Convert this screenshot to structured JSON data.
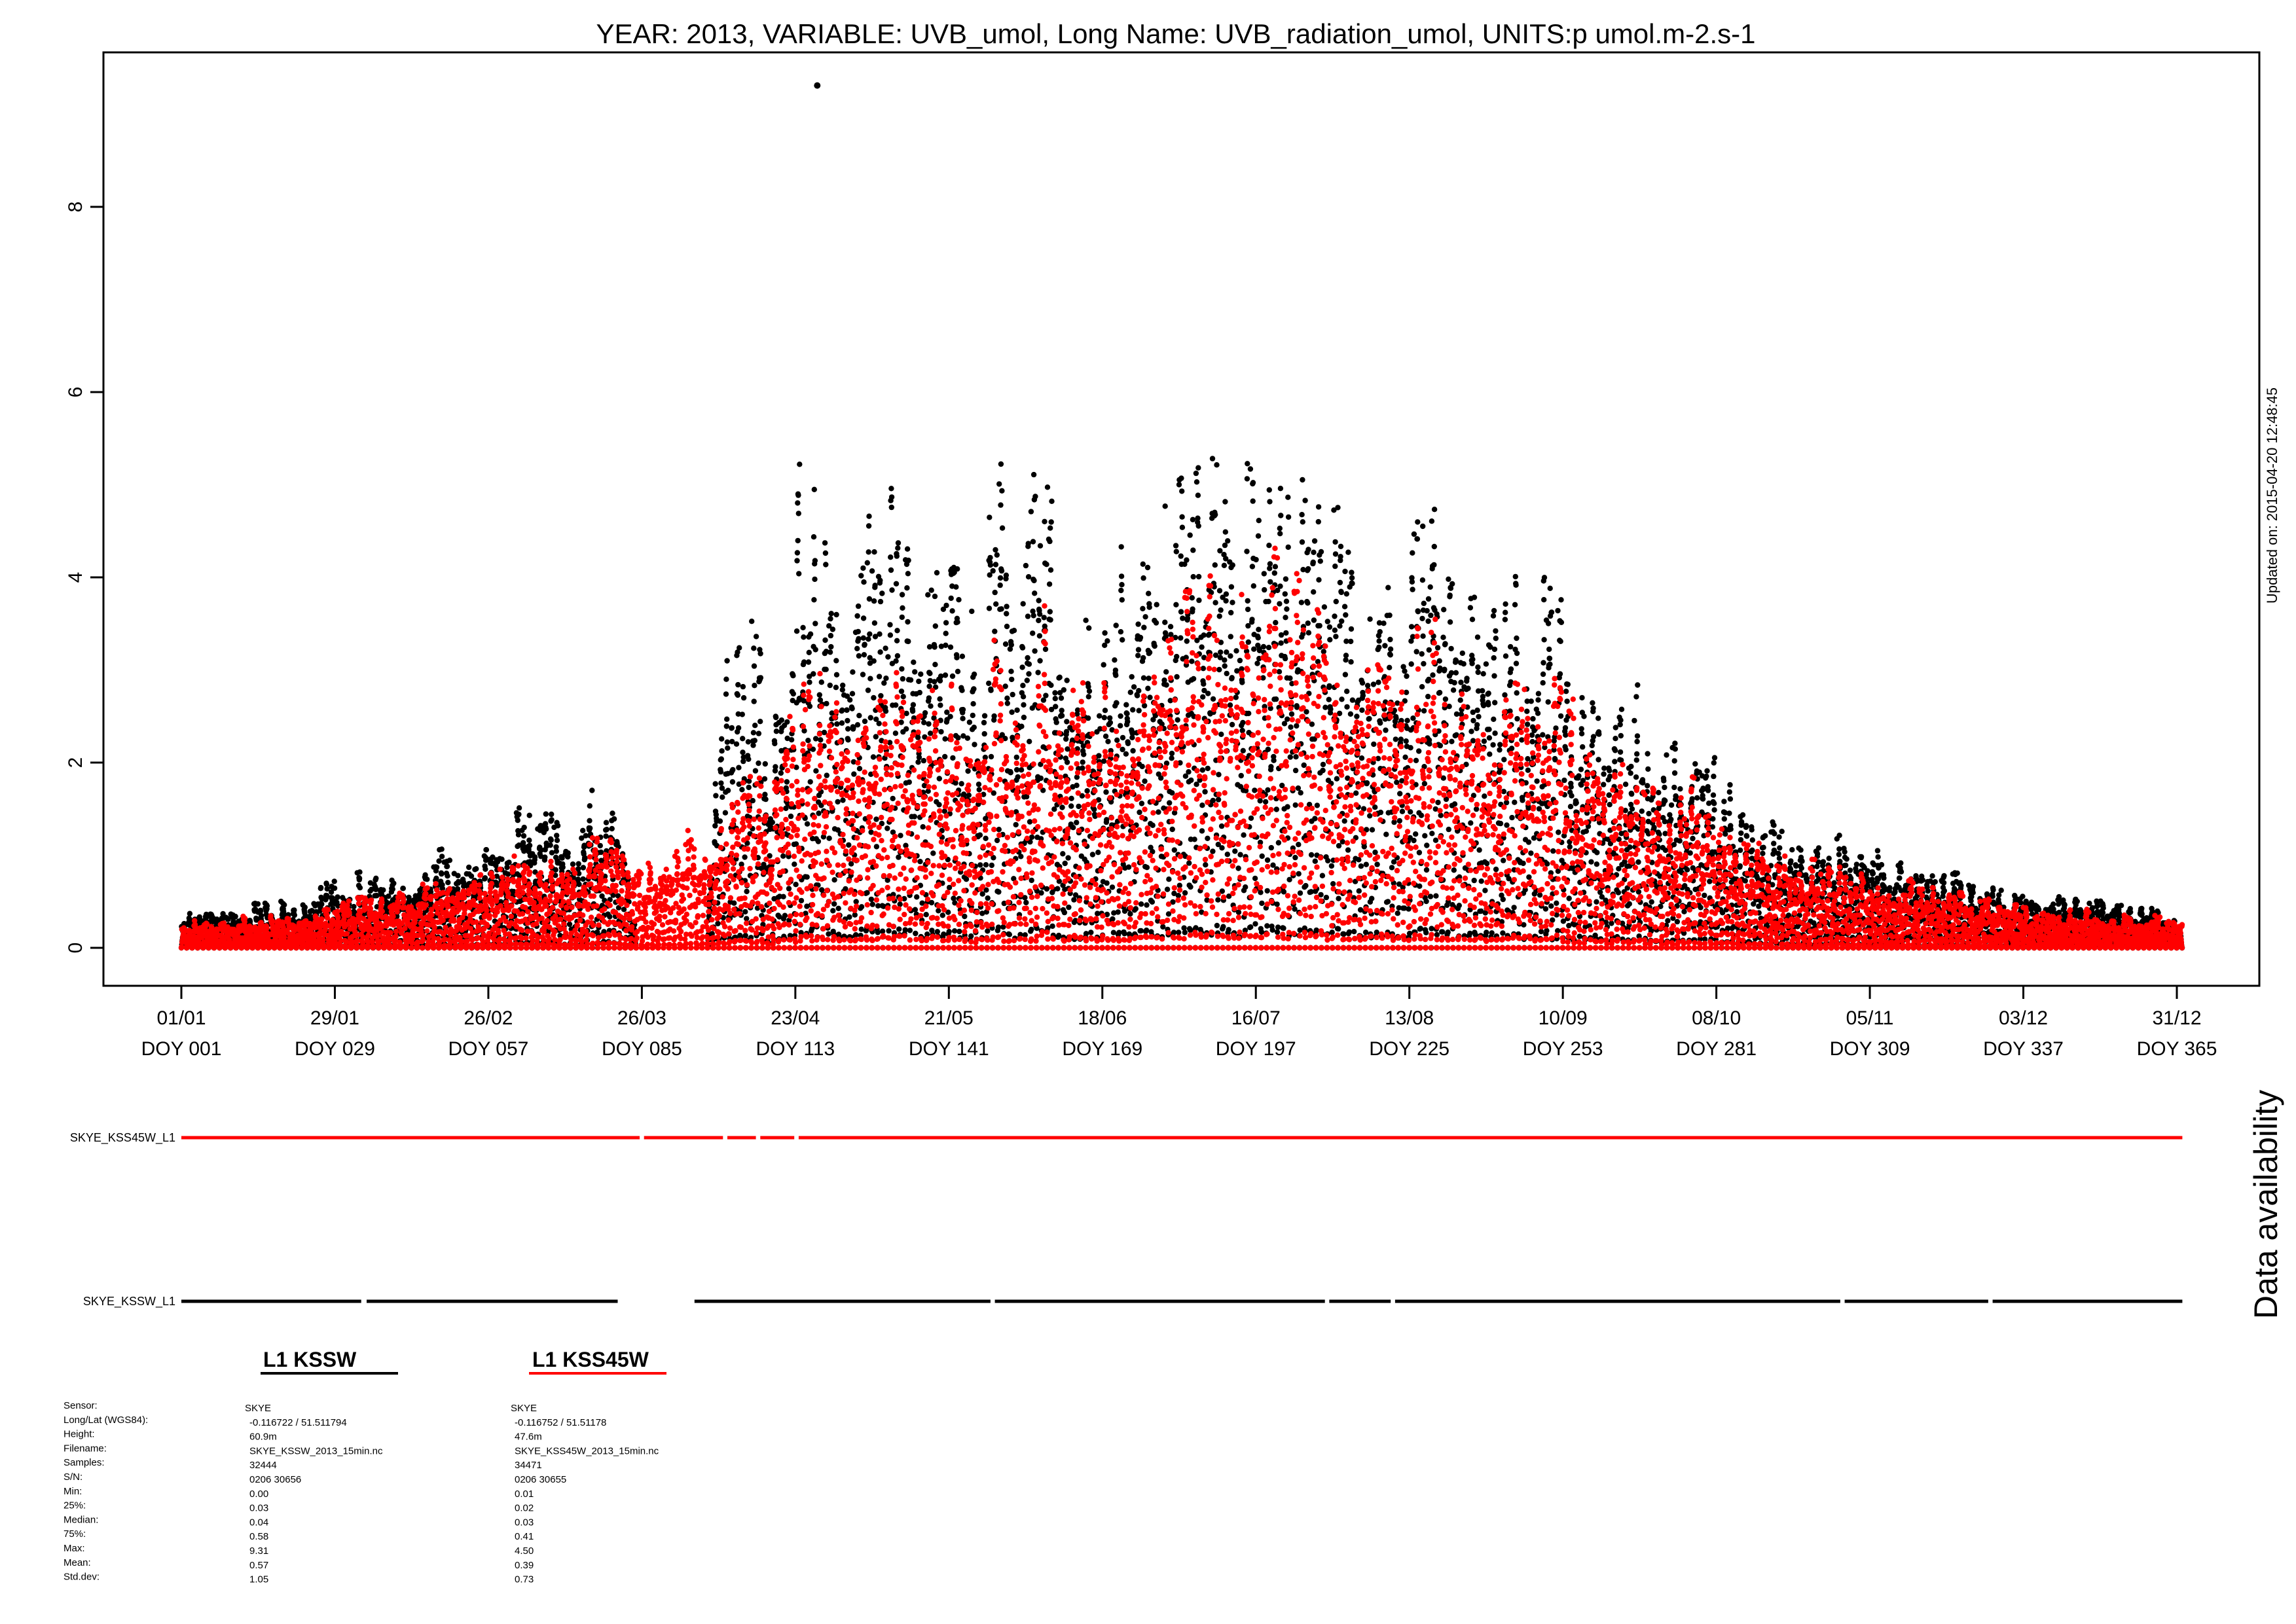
{
  "chart_data": {
    "type": "scatter",
    "title": "YEAR: 2013, VARIABLE: UVB_umol, Long Name: UVB_radiation_umol, UNITS:p umol.m-2.s-1",
    "xlabel": "",
    "ylabel": "",
    "x_domain": [
      1,
      366
    ],
    "ylim": [
      -0.4,
      9.7
    ],
    "y_ticks": [
      0,
      2,
      4,
      6,
      8
    ],
    "x_ticks": [
      {
        "doy": 1,
        "date": "01/01",
        "label": "DOY 001"
      },
      {
        "doy": 29,
        "date": "29/01",
        "label": "DOY 029"
      },
      {
        "doy": 57,
        "date": "26/02",
        "label": "DOY 057"
      },
      {
        "doy": 85,
        "date": "26/03",
        "label": "DOY 085"
      },
      {
        "doy": 113,
        "date": "23/04",
        "label": "DOY 113"
      },
      {
        "doy": 141,
        "date": "21/05",
        "label": "DOY 141"
      },
      {
        "doy": 169,
        "date": "18/06",
        "label": "DOY 169"
      },
      {
        "doy": 197,
        "date": "16/07",
        "label": "DOY 197"
      },
      {
        "doy": 225,
        "date": "13/08",
        "label": "DOY 225"
      },
      {
        "doy": 253,
        "date": "10/09",
        "label": "DOY 253"
      },
      {
        "doy": 281,
        "date": "08/10",
        "label": "DOY 281"
      },
      {
        "doy": 309,
        "date": "05/11",
        "label": "DOY 309"
      },
      {
        "doy": 337,
        "date": "03/12",
        "label": "DOY 337"
      },
      {
        "doy": 365,
        "date": "31/12",
        "label": "DOY 365"
      }
    ],
    "grid": false,
    "series": [
      {
        "name": "SKYE_KSSW_L1",
        "color": "#000000",
        "daily_max": [
          [
            1,
            0.45
          ],
          [
            8,
            0.4
          ],
          [
            15,
            0.55
          ],
          [
            22,
            0.5
          ],
          [
            29,
            0.9
          ],
          [
            36,
            0.8
          ],
          [
            43,
            1.0
          ],
          [
            50,
            1.2
          ],
          [
            57,
            1.3
          ],
          [
            64,
            1.75
          ],
          [
            71,
            1.5
          ],
          [
            78,
            1.95
          ],
          [
            81,
            1.4
          ],
          [
            84,
            0.0
          ],
          [
            96,
            0.0
          ],
          [
            98,
            2.2
          ],
          [
            100,
            3.3
          ],
          [
            103,
            4.0
          ],
          [
            106,
            4.5
          ],
          [
            108,
            2.0
          ],
          [
            112,
            4.6
          ],
          [
            113,
            6.0
          ],
          [
            116,
            5.4
          ],
          [
            121,
            5.1
          ],
          [
            126,
            5.0
          ],
          [
            131,
            5.7
          ],
          [
            136,
            4.6
          ],
          [
            141,
            4.8
          ],
          [
            146,
            3.6
          ],
          [
            149,
            6.0
          ],
          [
            153,
            4.3
          ],
          [
            158,
            5.9
          ],
          [
            163,
            4.5
          ],
          [
            168,
            3.5
          ],
          [
            172,
            4.7
          ],
          [
            178,
            4.2
          ],
          [
            183,
            5.9
          ],
          [
            188,
            5.5
          ],
          [
            193,
            5.8
          ],
          [
            198,
            5.7
          ],
          [
            203,
            5.6
          ],
          [
            208,
            5.5
          ],
          [
            213,
            5.4
          ],
          [
            218,
            4.8
          ],
          [
            223,
            4.6
          ],
          [
            228,
            5.1
          ],
          [
            233,
            4.5
          ],
          [
            238,
            3.5
          ],
          [
            243,
            4.2
          ],
          [
            248,
            4.1
          ],
          [
            251,
            4.3
          ],
          [
            256,
            3.4
          ],
          [
            262,
            2.6
          ],
          [
            266,
            2.9
          ],
          [
            271,
            2.4
          ],
          [
            276,
            2.5
          ],
          [
            281,
            2.1
          ],
          [
            286,
            1.6
          ],
          [
            293,
            1.4
          ],
          [
            300,
            1.3
          ],
          [
            307,
            1.2
          ],
          [
            314,
            1.05
          ],
          [
            320,
            0.9
          ],
          [
            327,
            0.8
          ],
          [
            333,
            0.65
          ],
          [
            340,
            0.6
          ],
          [
            347,
            0.55
          ],
          [
            354,
            0.5
          ],
          [
            360,
            0.5
          ],
          [
            366,
            0.3
          ]
        ],
        "gaps": [
          [
            90,
            96
          ]
        ],
        "max_value": 9.31,
        "max_doy": 117
      },
      {
        "name": "SKYE_KSS45W_L1",
        "color": "#ff0000",
        "daily_max": [
          [
            1,
            0.35
          ],
          [
            8,
            0.3
          ],
          [
            15,
            0.4
          ],
          [
            22,
            0.35
          ],
          [
            29,
            0.6
          ],
          [
            36,
            0.55
          ],
          [
            43,
            0.7
          ],
          [
            50,
            0.9
          ],
          [
            57,
            0.95
          ],
          [
            64,
            1.2
          ],
          [
            71,
            1.05
          ],
          [
            78,
            1.3
          ],
          [
            84,
            0.9
          ],
          [
            88,
            1.2
          ],
          [
            92,
            1.5
          ],
          [
            96,
            1.5
          ],
          [
            98,
            1.6
          ],
          [
            100,
            1.8
          ],
          [
            103,
            1.9
          ],
          [
            106,
            2.2
          ],
          [
            108,
            1.5
          ],
          [
            112,
            3.1
          ],
          [
            116,
            3.1
          ],
          [
            121,
            3.0
          ],
          [
            126,
            2.8
          ],
          [
            131,
            3.3
          ],
          [
            136,
            2.8
          ],
          [
            141,
            3.0
          ],
          [
            146,
            2.5
          ],
          [
            149,
            3.6
          ],
          [
            153,
            3.0
          ],
          [
            158,
            3.8
          ],
          [
            163,
            3.2
          ],
          [
            168,
            2.8
          ],
          [
            172,
            3.3
          ],
          [
            178,
            3.2
          ],
          [
            183,
            4.0
          ],
          [
            188,
            4.1
          ],
          [
            193,
            4.2
          ],
          [
            198,
            4.3
          ],
          [
            203,
            4.5
          ],
          [
            208,
            4.2
          ],
          [
            213,
            4.1
          ],
          [
            218,
            3.8
          ],
          [
            223,
            3.6
          ],
          [
            228,
            4.0
          ],
          [
            233,
            3.5
          ],
          [
            238,
            2.8
          ],
          [
            243,
            3.2
          ],
          [
            248,
            3.3
          ],
          [
            251,
            3.3
          ],
          [
            256,
            2.6
          ],
          [
            262,
            2.0
          ],
          [
            266,
            2.1
          ],
          [
            271,
            1.8
          ],
          [
            276,
            1.9
          ],
          [
            281,
            1.6
          ],
          [
            286,
            1.2
          ],
          [
            293,
            1.1
          ],
          [
            300,
            1.0
          ],
          [
            307,
            0.95
          ],
          [
            314,
            0.8
          ],
          [
            320,
            0.7
          ],
          [
            327,
            0.6
          ],
          [
            333,
            0.5
          ],
          [
            340,
            0.45
          ],
          [
            347,
            0.45
          ],
          [
            354,
            0.4
          ],
          [
            360,
            0.4
          ],
          [
            366,
            0.25
          ]
        ],
        "gaps": [],
        "max_value": 4.5
      }
    ]
  },
  "updated_note": "Updated on: 2015-04-20 12:48:45",
  "availability": {
    "title": "Data availability",
    "rows": [
      {
        "label": "SKYE_KSS45W_L1",
        "color": "#ff0000",
        "segments": [
          [
            1,
            84.6
          ],
          [
            85.4,
            99.8
          ],
          [
            100.6,
            105.8
          ],
          [
            106.6,
            112.8
          ],
          [
            113.6,
            366
          ]
        ]
      },
      {
        "label": "SKYE_KSSW_L1",
        "color": "#000000",
        "segments": [
          [
            1,
            33.8
          ],
          [
            34.8,
            80.6
          ],
          [
            94.6,
            148.6
          ],
          [
            149.4,
            209.6
          ],
          [
            210.4,
            221.6
          ],
          [
            222.4,
            303.6
          ],
          [
            304.4,
            330.6
          ],
          [
            331.4,
            366
          ]
        ]
      }
    ]
  },
  "legend": {
    "kssw": {
      "title": "L1 KSSW",
      "color": "#000000"
    },
    "kss45w": {
      "title": "L1 KSS45W",
      "color": "#ff0000"
    }
  },
  "metadata": {
    "labels": [
      "Sensor:",
      "Long/Lat (WGS84):",
      "Height:",
      "Filename:",
      "Samples:",
      "S/N:",
      "Min:",
      "25%:",
      "Median:",
      "75%:",
      "Max:",
      "Mean:",
      "Std.dev:"
    ],
    "kssw": [
      "SKYE",
      "-0.116722 / 51.511794",
      "60.9m",
      "SKYE_KSSW_2013_15min.nc",
      "32444",
      "0206 30656",
      "0.00",
      "0.03",
      "0.04",
      "0.58",
      "9.31",
      "0.57",
      "1.05"
    ],
    "kss45w": [
      "SKYE",
      "-0.116752 / 51.51178",
      "47.6m",
      "SKYE_KSS45W_2013_15min.nc",
      "34471",
      "0206 30655",
      "0.01",
      "0.02",
      "0.03",
      "0.41",
      "4.50",
      "0.39",
      "0.73"
    ]
  }
}
